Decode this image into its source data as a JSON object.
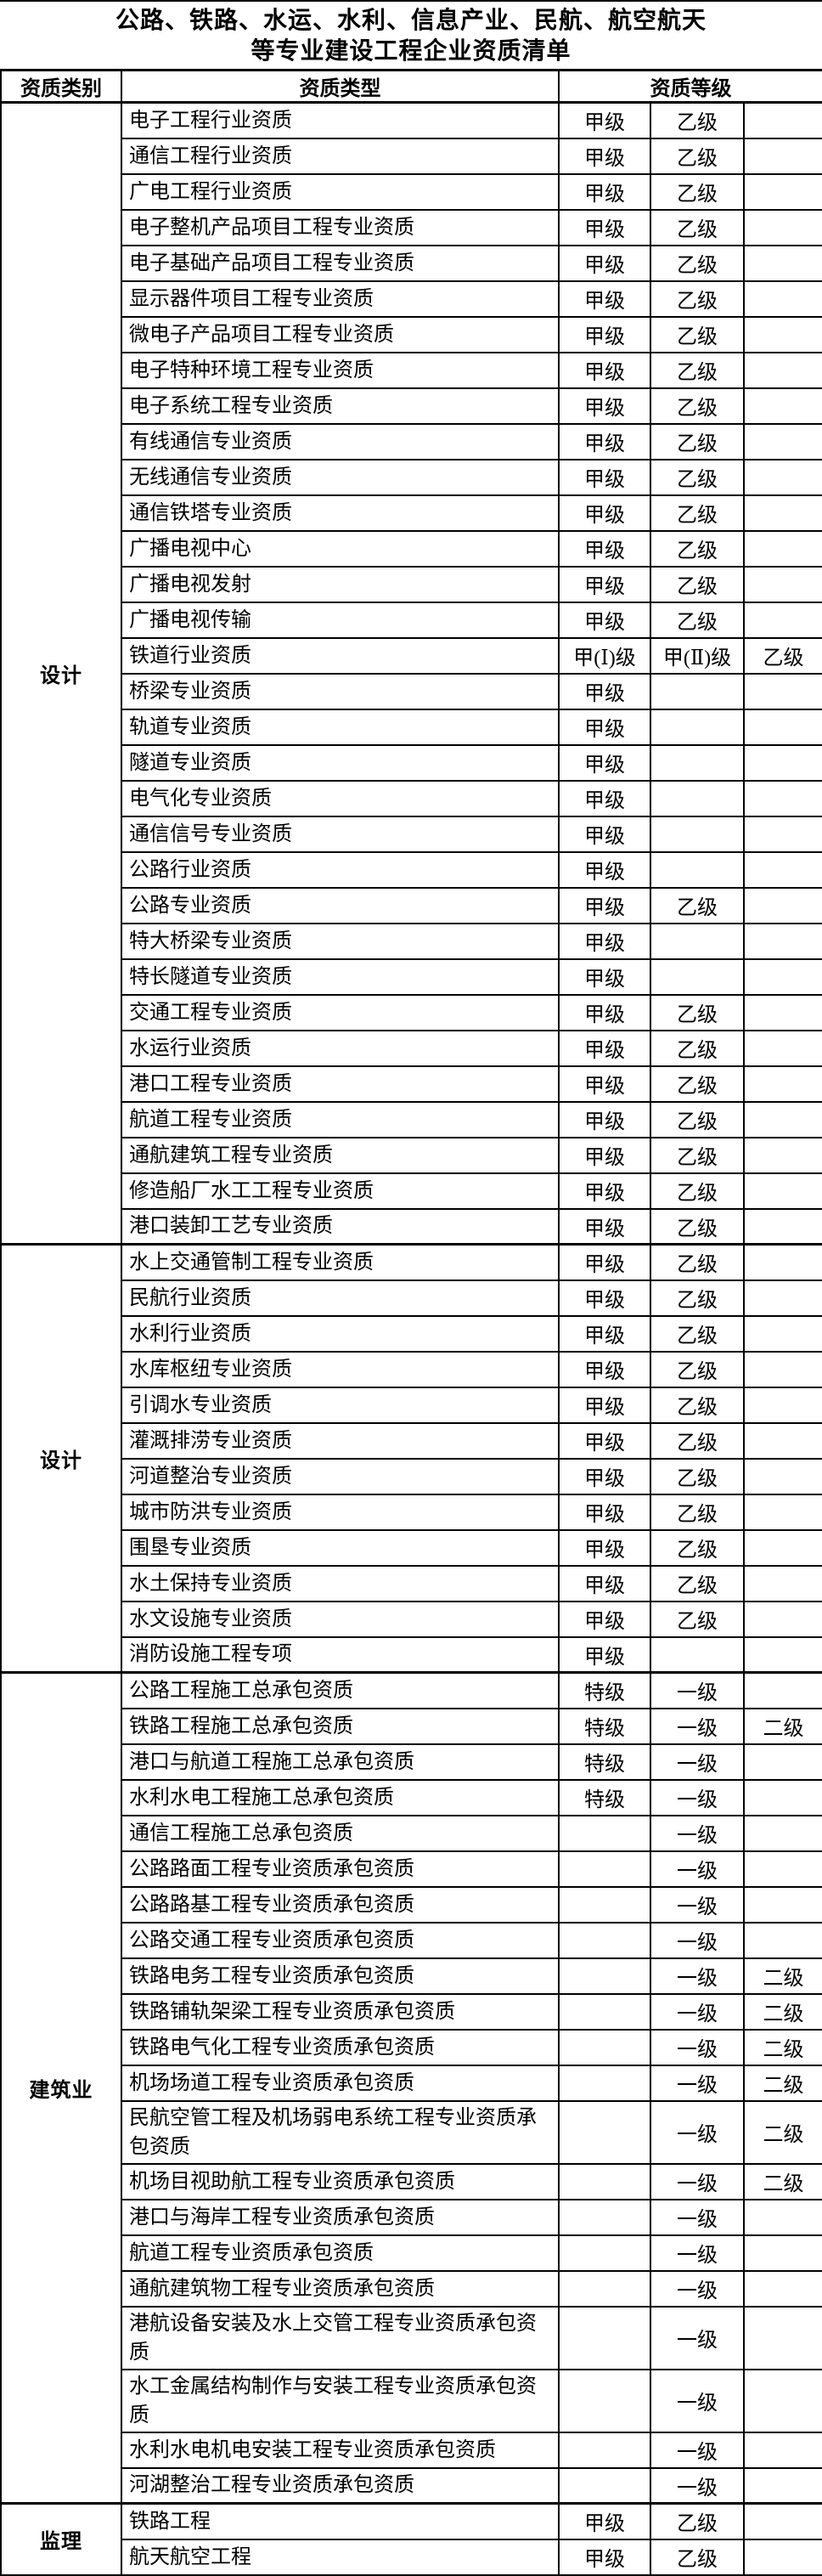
{
  "title": {
    "line1": "公路、铁路、水运、水利、信息产业、民航、航空航天",
    "line2": "等专业建设工程企业资质清单"
  },
  "header": {
    "category": "资质类别",
    "type": "资质类型",
    "level": "资质等级"
  },
  "sections": [
    {
      "category": "设计",
      "rows": [
        {
          "type": "电子工程行业资质",
          "levels": [
            "甲级",
            "乙级",
            ""
          ]
        },
        {
          "type": "通信工程行业资质",
          "levels": [
            "甲级",
            "乙级",
            ""
          ]
        },
        {
          "type": "广电工程行业资质",
          "levels": [
            "甲级",
            "乙级",
            ""
          ]
        },
        {
          "type": "电子整机产品项目工程专业资质",
          "levels": [
            "甲级",
            "乙级",
            ""
          ]
        },
        {
          "type": "电子基础产品项目工程专业资质",
          "levels": [
            "甲级",
            "乙级",
            ""
          ]
        },
        {
          "type": "显示器件项目工程专业资质",
          "levels": [
            "甲级",
            "乙级",
            ""
          ]
        },
        {
          "type": "微电子产品项目工程专业资质",
          "levels": [
            "甲级",
            "乙级",
            ""
          ]
        },
        {
          "type": "电子特种环境工程专业资质",
          "levels": [
            "甲级",
            "乙级",
            ""
          ]
        },
        {
          "type": "电子系统工程专业资质",
          "levels": [
            "甲级",
            "乙级",
            ""
          ]
        },
        {
          "type": "有线通信专业资质",
          "levels": [
            "甲级",
            "乙级",
            ""
          ]
        },
        {
          "type": "无线通信专业资质",
          "levels": [
            "甲级",
            "乙级",
            ""
          ]
        },
        {
          "type": "通信铁塔专业资质",
          "levels": [
            "甲级",
            "乙级",
            ""
          ]
        },
        {
          "type": "广播电视中心",
          "levels": [
            "甲级",
            "乙级",
            ""
          ]
        },
        {
          "type": "广播电视发射",
          "levels": [
            "甲级",
            "乙级",
            ""
          ]
        },
        {
          "type": "广播电视传输",
          "levels": [
            "甲级",
            "乙级",
            ""
          ]
        },
        {
          "type": "铁道行业资质",
          "levels": [
            "甲(Ⅰ)级",
            "甲(Ⅱ)级",
            "乙级"
          ]
        },
        {
          "type": "桥梁专业资质",
          "levels": [
            "甲级",
            "",
            ""
          ]
        },
        {
          "type": "轨道专业资质",
          "levels": [
            "甲级",
            "",
            ""
          ]
        },
        {
          "type": "隧道专业资质",
          "levels": [
            "甲级",
            "",
            ""
          ]
        },
        {
          "type": "电气化专业资质",
          "levels": [
            "甲级",
            "",
            ""
          ]
        },
        {
          "type": "通信信号专业资质",
          "levels": [
            "甲级",
            "",
            ""
          ]
        },
        {
          "type": "公路行业资质",
          "levels": [
            "甲级",
            "",
            ""
          ]
        },
        {
          "type": "公路专业资质",
          "levels": [
            "甲级",
            "乙级",
            ""
          ]
        },
        {
          "type": "特大桥梁专业资质",
          "levels": [
            "甲级",
            "",
            ""
          ]
        },
        {
          "type": "特长隧道专业资质",
          "levels": [
            "甲级",
            "",
            ""
          ]
        },
        {
          "type": "交通工程专业资质",
          "levels": [
            "甲级",
            "乙级",
            ""
          ]
        },
        {
          "type": "水运行业资质",
          "levels": [
            "甲级",
            "乙级",
            ""
          ]
        },
        {
          "type": "港口工程专业资质",
          "levels": [
            "甲级",
            "乙级",
            ""
          ]
        },
        {
          "type": "航道工程专业资质",
          "levels": [
            "甲级",
            "乙级",
            ""
          ]
        },
        {
          "type": "通航建筑工程专业资质",
          "levels": [
            "甲级",
            "乙级",
            ""
          ]
        },
        {
          "type": "修造船厂水工工程专业资质",
          "levels": [
            "甲级",
            "乙级",
            ""
          ]
        },
        {
          "type": "港口装卸工艺专业资质",
          "levels": [
            "甲级",
            "乙级",
            ""
          ]
        }
      ]
    },
    {
      "category": "设计",
      "rows": [
        {
          "type": "水上交通管制工程专业资质",
          "levels": [
            "甲级",
            "乙级",
            ""
          ]
        },
        {
          "type": "民航行业资质",
          "levels": [
            "甲级",
            "乙级",
            ""
          ]
        },
        {
          "type": "水利行业资质",
          "levels": [
            "甲级",
            "乙级",
            ""
          ]
        },
        {
          "type": "水库枢纽专业资质",
          "levels": [
            "甲级",
            "乙级",
            ""
          ]
        },
        {
          "type": "引调水专业资质",
          "levels": [
            "甲级",
            "乙级",
            ""
          ]
        },
        {
          "type": "灌溉排涝专业资质",
          "levels": [
            "甲级",
            "乙级",
            ""
          ]
        },
        {
          "type": "河道整治专业资质",
          "levels": [
            "甲级",
            "乙级",
            ""
          ]
        },
        {
          "type": "城市防洪专业资质",
          "levels": [
            "甲级",
            "乙级",
            ""
          ]
        },
        {
          "type": "围垦专业资质",
          "levels": [
            "甲级",
            "乙级",
            ""
          ]
        },
        {
          "type": "水土保持专业资质",
          "levels": [
            "甲级",
            "乙级",
            ""
          ]
        },
        {
          "type": "水文设施专业资质",
          "levels": [
            "甲级",
            "乙级",
            ""
          ]
        },
        {
          "type": "消防设施工程专项",
          "levels": [
            "甲级",
            "",
            ""
          ]
        }
      ]
    },
    {
      "category": "建筑业",
      "rows": [
        {
          "type": "公路工程施工总承包资质",
          "levels": [
            "特级",
            "一级",
            ""
          ]
        },
        {
          "type": "铁路工程施工总承包资质",
          "levels": [
            "特级",
            "一级",
            "二级"
          ]
        },
        {
          "type": "港口与航道工程施工总承包资质",
          "levels": [
            "特级",
            "一级",
            ""
          ]
        },
        {
          "type": "水利水电工程施工总承包资质",
          "levels": [
            "特级",
            "一级",
            ""
          ]
        },
        {
          "type": "通信工程施工总承包资质",
          "levels": [
            "",
            "一级",
            ""
          ]
        },
        {
          "type": "公路路面工程专业资质承包资质",
          "levels": [
            "",
            "一级",
            ""
          ]
        },
        {
          "type": "公路路基工程专业资质承包资质",
          "levels": [
            "",
            "一级",
            ""
          ]
        },
        {
          "type": "公路交通工程专业资质承包资质",
          "levels": [
            "",
            "一级",
            ""
          ]
        },
        {
          "type": "铁路电务工程专业资质承包资质",
          "levels": [
            "",
            "一级",
            "二级"
          ]
        },
        {
          "type": "铁路铺轨架梁工程专业资质承包资质",
          "levels": [
            "",
            "一级",
            "二级"
          ]
        },
        {
          "type": "铁路电气化工程专业资质承包资质",
          "levels": [
            "",
            "一级",
            "二级"
          ]
        },
        {
          "type": "机场场道工程专业资质承包资质",
          "levels": [
            "",
            "一级",
            "二级"
          ]
        },
        {
          "type": "民航空管工程及机场弱电系统工程专业资质承包资质",
          "levels": [
            "",
            "一级",
            "二级"
          ]
        },
        {
          "type": "机场目视助航工程专业资质承包资质",
          "levels": [
            "",
            "一级",
            "二级"
          ]
        },
        {
          "type": "港口与海岸工程专业资质承包资质",
          "levels": [
            "",
            "一级",
            ""
          ]
        },
        {
          "type": "航道工程专业资质承包资质",
          "levels": [
            "",
            "一级",
            ""
          ]
        },
        {
          "type": "通航建筑物工程专业资质承包资质",
          "levels": [
            "",
            "一级",
            ""
          ]
        },
        {
          "type": "港航设备安装及水上交管工程专业资质承包资质",
          "levels": [
            "",
            "一级",
            ""
          ]
        },
        {
          "type": "水工金属结构制作与安装工程专业资质承包资质",
          "levels": [
            "",
            "一级",
            ""
          ]
        },
        {
          "type": "水利水电机电安装工程专业资质承包资质",
          "levels": [
            "",
            "一级",
            ""
          ]
        },
        {
          "type": "河湖整治工程专业资质承包资质",
          "levels": [
            "",
            "一级",
            ""
          ]
        }
      ]
    },
    {
      "category": "监理",
      "rows": [
        {
          "type": "铁路工程",
          "levels": [
            "甲级",
            "乙级",
            ""
          ]
        },
        {
          "type": "航天航空工程",
          "levels": [
            "甲级",
            "乙级",
            ""
          ]
        }
      ]
    }
  ]
}
